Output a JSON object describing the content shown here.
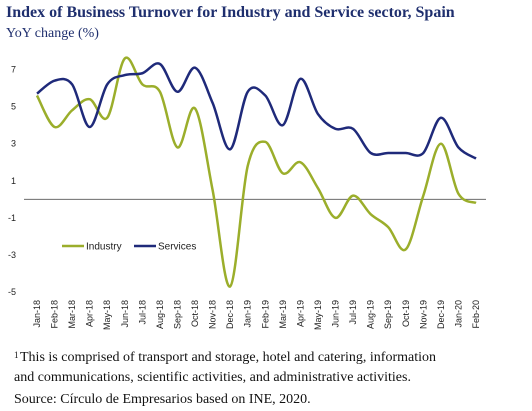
{
  "chart_data": {
    "type": "line",
    "title": "Index of Business Turnover for Industry and Service sector, Spain",
    "subtitle": "YoY change (%)",
    "categories": [
      "Jan-18",
      "Feb-18",
      "Mar-18",
      "Apr-18",
      "May-18",
      "Jun-18",
      "Jul-18",
      "Aug-18",
      "Sep-18",
      "Oct-18",
      "Nov-18",
      "Dec-18",
      "Jan-19",
      "Feb-19",
      "Mar-19",
      "Apr-19",
      "May-19",
      "Jun-19",
      "Jul-19",
      "Aug-19",
      "Sep-19",
      "Oct-19",
      "Nov-19",
      "Dec-19",
      "Jan-20",
      "Feb-20"
    ],
    "series": [
      {
        "name": "Industry",
        "color": "#9bae2b",
        "values": [
          5.6,
          3.9,
          4.8,
          5.4,
          4.4,
          7.6,
          6.2,
          5.8,
          2.8,
          4.9,
          0.5,
          -4.7,
          1.8,
          3.1,
          1.4,
          2.0,
          0.6,
          -1.0,
          0.2,
          -0.8,
          -1.5,
          -2.7,
          0.2,
          3.0,
          0.3,
          -0.2
        ]
      },
      {
        "name": "Services",
        "color": "#1f2a7a",
        "values": [
          5.7,
          6.4,
          6.2,
          3.9,
          6.2,
          6.7,
          6.8,
          7.3,
          5.8,
          7.1,
          5.2,
          2.7,
          5.8,
          5.6,
          4.0,
          6.5,
          4.6,
          3.8,
          3.8,
          2.5,
          2.5,
          2.5,
          2.5,
          4.4,
          2.8,
          2.2
        ]
      }
    ],
    "ylim": [
      -5,
      8
    ],
    "yticks": [
      -5,
      -3,
      -1,
      1,
      3,
      5,
      7
    ],
    "grid": false,
    "zero_line": true,
    "legend": "lower-left",
    "footnote_marker": "1",
    "footnote": [
      "This is comprised of transport and storage, hotel and catering, information",
      "and communications, scientific activities, and administrative activities."
    ],
    "source": "Source: Círculo de Empresarios based on INE, 2020."
  }
}
